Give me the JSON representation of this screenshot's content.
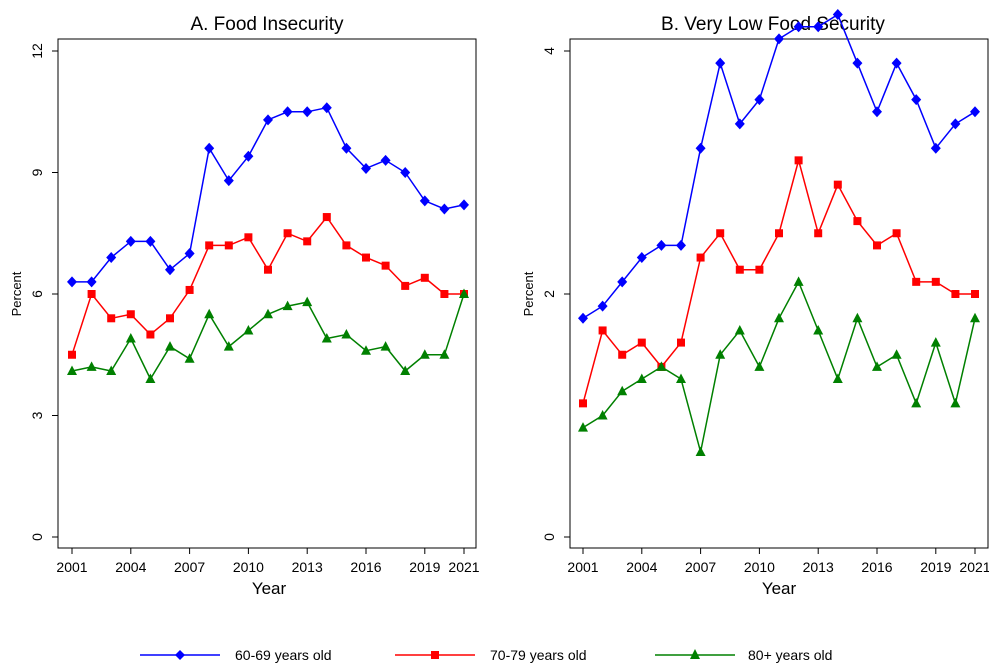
{
  "chart_data": [
    {
      "type": "line",
      "title": "A.  Food Insecurity",
      "xlabel": "Year",
      "ylabel": "Percent",
      "xlim": [
        2001,
        2021
      ],
      "ylim": [
        0,
        12
      ],
      "xticks": [
        2001,
        2004,
        2007,
        2010,
        2013,
        2016,
        2019,
        2021
      ],
      "yticks": [
        0,
        3,
        6,
        9,
        12
      ],
      "grid": false,
      "x": [
        2001,
        2002,
        2003,
        2004,
        2005,
        2006,
        2007,
        2008,
        2009,
        2010,
        2011,
        2012,
        2013,
        2014,
        2015,
        2016,
        2017,
        2018,
        2019,
        2020,
        2021
      ],
      "series": [
        {
          "name": "60-69 years old",
          "color": "#0000ff",
          "marker": "diamond",
          "values": [
            6.3,
            6.3,
            6.9,
            7.3,
            7.3,
            6.6,
            7.0,
            9.6,
            8.8,
            9.4,
            10.3,
            10.5,
            10.5,
            10.6,
            9.6,
            9.1,
            9.3,
            9.0,
            8.3,
            8.1,
            8.2
          ]
        },
        {
          "name": "70-79 years old",
          "color": "#ff0000",
          "marker": "square",
          "values": [
            4.5,
            6.0,
            5.4,
            5.5,
            5.0,
            5.4,
            6.1,
            7.2,
            7.2,
            7.4,
            6.6,
            7.5,
            7.3,
            7.9,
            7.2,
            6.9,
            6.7,
            6.2,
            6.4,
            6.0,
            6.0
          ]
        },
        {
          "name": "80+ years old",
          "color": "#008000",
          "marker": "triangle",
          "values": [
            4.1,
            4.2,
            4.1,
            4.9,
            3.9,
            4.7,
            4.4,
            5.5,
            4.7,
            5.1,
            5.5,
            5.7,
            5.8,
            4.9,
            5.0,
            4.6,
            4.7,
            4.1,
            4.5,
            4.5,
            6.0
          ]
        }
      ]
    },
    {
      "type": "line",
      "title": "B.  Very Low Food Security",
      "xlabel": "Year",
      "ylabel": "Percent",
      "xlim": [
        2001,
        2021
      ],
      "ylim": [
        0,
        4
      ],
      "xticks": [
        2001,
        2004,
        2007,
        2010,
        2013,
        2016,
        2019,
        2021
      ],
      "yticks": [
        0,
        2,
        4
      ],
      "grid": false,
      "x": [
        2001,
        2002,
        2003,
        2004,
        2005,
        2006,
        2007,
        2008,
        2009,
        2010,
        2011,
        2012,
        2013,
        2014,
        2015,
        2016,
        2017,
        2018,
        2019,
        2020,
        2021
      ],
      "series": [
        {
          "name": "60-69 years old",
          "color": "#0000ff",
          "marker": "diamond",
          "values": [
            1.8,
            1.9,
            2.1,
            2.3,
            2.4,
            2.4,
            3.2,
            3.9,
            3.4,
            3.6,
            4.1,
            4.2,
            4.2,
            4.3,
            3.9,
            3.5,
            3.9,
            3.6,
            3.2,
            3.4,
            3.5
          ]
        },
        {
          "name": "70-79 years old",
          "color": "#ff0000",
          "marker": "square",
          "values": [
            1.1,
            1.7,
            1.5,
            1.6,
            1.4,
            1.6,
            2.3,
            2.5,
            2.2,
            2.2,
            2.5,
            3.1,
            2.5,
            2.9,
            2.6,
            2.4,
            2.5,
            2.1,
            2.1,
            2.0,
            2.0
          ]
        },
        {
          "name": "80+ years old",
          "color": "#008000",
          "marker": "triangle",
          "values": [
            0.9,
            1.0,
            1.2,
            1.3,
            1.4,
            1.3,
            0.7,
            1.5,
            1.7,
            1.4,
            1.8,
            2.1,
            1.7,
            1.3,
            1.8,
            1.4,
            1.5,
            1.1,
            1.6,
            1.1,
            1.8
          ]
        }
      ]
    }
  ],
  "legend": {
    "position": "bottom",
    "entries": [
      {
        "label": "60-69 years old",
        "color": "#0000ff",
        "marker": "diamond"
      },
      {
        "label": "70-79 years old",
        "color": "#ff0000",
        "marker": "square"
      },
      {
        "label": "80+ years old",
        "color": "#008000",
        "marker": "triangle"
      }
    ]
  }
}
